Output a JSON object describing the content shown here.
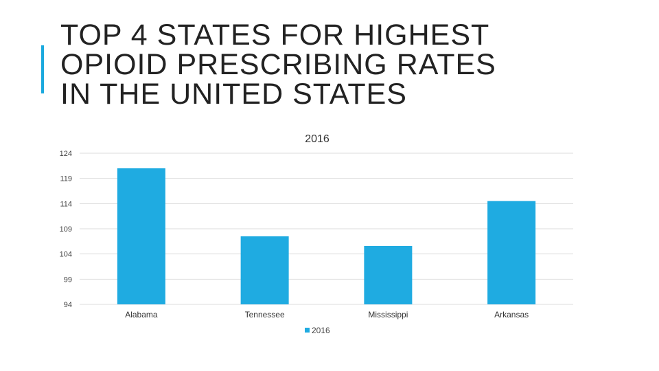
{
  "slide": {
    "title_lines": [
      "TOP 4 STATES FOR HIGHEST",
      "OPIOID PRESCRIBING RATES",
      "IN THE UNITED STATES"
    ],
    "accent_color": "#1aa9de"
  },
  "chart_data": {
    "type": "bar",
    "title": "2016",
    "categories": [
      "Alabama",
      "Tennessee",
      "Mississippi",
      "Arkansas"
    ],
    "series": [
      {
        "name": "2016",
        "values": [
          121,
          107.5,
          105.6,
          114.5
        ],
        "color": "#1fabe1"
      }
    ],
    "ylim": [
      94,
      124
    ],
    "yticks": [
      124,
      119,
      114,
      109,
      104,
      99,
      94
    ],
    "xlabel": "",
    "ylabel": "",
    "grid": true,
    "legend_position": "bottom"
  }
}
